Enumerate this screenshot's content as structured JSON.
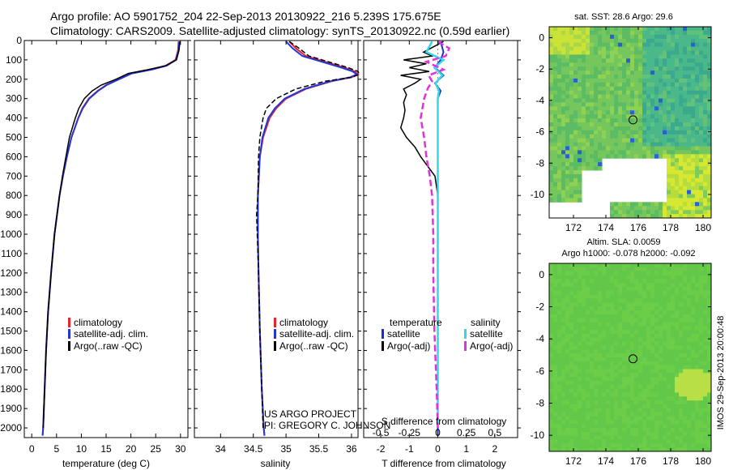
{
  "header": {
    "line1": "Argo profile: AO 5901752_204 22-Sep-2013 20130922_216 5.239S 175.675E",
    "line2": "Climatology: CARS2009. Satellite-adjusted climatology: synTS_20130922.nc (0.59d earlier)"
  },
  "colors": {
    "climatology": "#e8262a",
    "satellite": "#2236d8",
    "argo": "#000000",
    "sat_diff_T": "#1a2ed0",
    "sat_diff_S": "#36d6e6",
    "argo_diff_S": "#e030e0"
  },
  "depth_axis": {
    "ticks": [
      "0",
      "100",
      "200",
      "300",
      "400",
      "500",
      "600",
      "700",
      "800",
      "900",
      "1000",
      "1100",
      "1200",
      "1300",
      "1400",
      "1500",
      "1600",
      "1700",
      "1800",
      "1900",
      "2000"
    ]
  },
  "chart_data": [
    {
      "type": "line",
      "id": "temperature",
      "xlabel": "temperature (deg C)",
      "xlim": [
        -1.5,
        31.5
      ],
      "ylim": [
        0,
        2050
      ],
      "xticks": [
        "0",
        "5",
        "10",
        "15",
        "20",
        "25",
        "30"
      ],
      "legend": [
        "climatology",
        "satellite-adj. clim.",
        "Argo(..raw -QC)"
      ],
      "series": [
        {
          "name": "climatology",
          "depth": [
            5,
            50,
            100,
            130,
            150,
            170,
            200,
            230,
            260,
            300,
            350,
            400,
            500,
            600,
            700,
            800,
            900,
            1000,
            1200,
            1400,
            1600,
            1800,
            2000,
            2040
          ],
          "values": [
            29.6,
            29.5,
            29.0,
            27.0,
            24.0,
            20.0,
            17.5,
            15.0,
            13.3,
            11.5,
            10.2,
            9.4,
            8.0,
            7.1,
            6.3,
            5.6,
            5.1,
            4.6,
            3.9,
            3.3,
            2.9,
            2.6,
            2.3,
            2.2
          ]
        },
        {
          "name": "satellite-adj. clim.",
          "depth": [
            5,
            50,
            100,
            130,
            150,
            170,
            200,
            230,
            260,
            300,
            350,
            400,
            500,
            600,
            700,
            800,
            900,
            1000,
            1200,
            1400,
            1600,
            1800,
            2000,
            2040
          ],
          "values": [
            29.8,
            29.6,
            29.1,
            27.2,
            24.2,
            20.2,
            17.6,
            15.1,
            13.4,
            11.6,
            10.3,
            9.4,
            8.0,
            7.1,
            6.3,
            5.6,
            5.1,
            4.6,
            3.9,
            3.3,
            2.9,
            2.6,
            2.3,
            2.2
          ]
        },
        {
          "name": "Argo(..raw -QC)",
          "depth": [
            5,
            50,
            100,
            130,
            150,
            170,
            200,
            230,
            260,
            300,
            350,
            400,
            500,
            600,
            700,
            800,
            900,
            1000,
            1200,
            1400,
            1600,
            1800,
            2000
          ],
          "values": [
            29.9,
            29.7,
            29.2,
            27.0,
            23.5,
            19.5,
            17.0,
            14.0,
            12.2,
            10.6,
            9.5,
            8.8,
            7.6,
            6.9,
            6.2,
            5.6,
            5.1,
            4.6,
            3.9,
            3.3,
            2.9,
            2.6,
            2.3
          ]
        }
      ]
    },
    {
      "type": "line",
      "id": "salinity",
      "xlabel": "salinity",
      "xlim": [
        33.6,
        36.1
      ],
      "ylim": [
        0,
        2050
      ],
      "xticks": [
        "34",
        "34.5",
        "35",
        "35.5",
        "36"
      ],
      "legend": [
        "climatology",
        "satellite-adj. clim.",
        "Argo(..raw -QC)"
      ],
      "annotation": [
        "US ARGO PROJECT",
        "PI: GREGORY C. JOHNSON"
      ],
      "series": [
        {
          "name": "climatology",
          "depth": [
            5,
            40,
            80,
            110,
            140,
            160,
            175,
            190,
            210,
            250,
            300,
            350,
            400,
            500,
            600,
            800,
            1000,
            1200,
            1500,
            1800,
            2000,
            2040
          ],
          "values": [
            35.05,
            35.15,
            35.3,
            35.6,
            35.9,
            36.05,
            36.1,
            36.0,
            35.7,
            35.3,
            35.0,
            34.85,
            34.75,
            34.65,
            34.6,
            34.57,
            34.57,
            34.58,
            34.6,
            34.63,
            34.66,
            34.67
          ]
        },
        {
          "name": "satellite-adj. clim.",
          "depth": [
            5,
            40,
            80,
            110,
            140,
            160,
            175,
            190,
            210,
            250,
            300,
            350,
            400,
            500,
            600,
            800,
            1000,
            1200,
            1500,
            1800,
            2000,
            2040
          ],
          "values": [
            35.0,
            35.1,
            35.25,
            35.55,
            35.85,
            36.02,
            36.08,
            35.98,
            35.68,
            35.28,
            34.98,
            34.83,
            34.73,
            34.64,
            34.6,
            34.57,
            34.57,
            34.58,
            34.6,
            34.63,
            34.66,
            34.67
          ]
        },
        {
          "name": "Argo(..raw -QC)",
          "depth": [
            5,
            40,
            80,
            110,
            140,
            160,
            175,
            190,
            210,
            250,
            300,
            350,
            400,
            500,
            600,
            800,
            900,
            1000,
            1200,
            1500,
            1800,
            2000
          ],
          "values": [
            35.05,
            35.2,
            35.35,
            35.65,
            35.95,
            36.1,
            36.12,
            36.0,
            35.6,
            35.15,
            34.85,
            34.7,
            34.65,
            34.6,
            34.58,
            34.57,
            34.55,
            34.56,
            34.58,
            34.6,
            34.63,
            34.65
          ]
        }
      ]
    },
    {
      "type": "line",
      "id": "difference",
      "xlabel_top": "S difference from climatology",
      "xlabel": "T difference from climatology",
      "xlim": [
        -2.6,
        2.8
      ],
      "ylim": [
        0,
        2050
      ],
      "xticks_T": [
        "-2",
        "-1",
        "0",
        "1",
        "2"
      ],
      "xticks_S": [
        "-0.5",
        "-0.25",
        "0",
        "0.25",
        "0.5"
      ],
      "legend_T_title": "temperature",
      "legend_S_title": "salinity",
      "legend": [
        "satellite",
        "Argo(-adj)",
        "satellite",
        "Argo(-adj)"
      ],
      "series": [
        {
          "name": "T satellite",
          "depth": [
            5,
            60,
            100,
            140,
            180,
            220,
            260,
            300,
            400,
            600,
            800,
            1000,
            1500,
            2000,
            2040
          ],
          "values": [
            0.1,
            0.2,
            0.1,
            -0.1,
            0.2,
            -0.1,
            0.1,
            0.0,
            0.0,
            0.0,
            0.0,
            0.0,
            0.0,
            0.0,
            0.0
          ]
        },
        {
          "name": "T Argo(-adj)",
          "depth": [
            5,
            60,
            80,
            100,
            120,
            140,
            160,
            180,
            200,
            220,
            250,
            280,
            320,
            360,
            400,
            450,
            500,
            550,
            600,
            650,
            700,
            800,
            900,
            1000,
            1200,
            1500,
            2000
          ],
          "values": [
            0.2,
            -0.5,
            -0.2,
            -1.2,
            -0.4,
            -1.0,
            -0.3,
            -1.3,
            -0.6,
            -0.8,
            -1.2,
            -1.1,
            -1.2,
            -1.15,
            -1.2,
            -1.3,
            -1.1,
            -0.8,
            -0.6,
            -0.35,
            -0.1,
            0.0,
            0.0,
            0.0,
            0.0,
            0.0,
            0.0
          ]
        },
        {
          "name": "S satellite",
          "depth": [
            5,
            60,
            100,
            140,
            180,
            220,
            260,
            300,
            400,
            600,
            800,
            1000,
            1500,
            2000
          ],
          "values": [
            -0.05,
            -0.1,
            0.05,
            -0.03,
            0.04,
            -0.02,
            0.01,
            0.0,
            0.0,
            0.0,
            0.0,
            0.0,
            0.0,
            0.0
          ]
        },
        {
          "name": "S Argo(-adj)",
          "depth": [
            5,
            40,
            80,
            110,
            150,
            180,
            210,
            250,
            300,
            400,
            500,
            600,
            700,
            800,
            1000,
            1200,
            1500,
            1800,
            2000
          ],
          "values": [
            0.0,
            0.1,
            0.07,
            -0.1,
            0.05,
            -0.08,
            -0.05,
            -0.09,
            -0.12,
            -0.15,
            -0.12,
            -0.1,
            -0.07,
            -0.05,
            -0.04,
            -0.04,
            -0.03,
            -0.01,
            0.0
          ]
        }
      ]
    },
    {
      "type": "heatmap",
      "id": "sst_map",
      "title": "sat. SST: 28.6 Argo: 29.6",
      "xlim": [
        170.5,
        180.5
      ],
      "ylim": [
        -11.5,
        0.7
      ],
      "xticks": [
        "172",
        "174",
        "176",
        "178",
        "180"
      ],
      "yticks": [
        "0",
        "-2",
        "-4",
        "-6",
        "-8",
        "-10"
      ],
      "float_position": [
        175.675,
        -5.239
      ]
    },
    {
      "type": "heatmap",
      "id": "sla_map",
      "title": "Altim. SLA: 0.0059",
      "subtitle": "Argo h1000: -0.078 h2000: -0.092",
      "xlim": [
        170.5,
        180.5
      ],
      "ylim": [
        -11.0,
        0.7
      ],
      "xticks": [
        "172",
        "174",
        "176",
        "178",
        "180"
      ],
      "yticks": [
        "0",
        "-2",
        "-4",
        "-6",
        "-8",
        "-10"
      ],
      "float_position": [
        175.675,
        -5.239
      ],
      "side_label": "IMOS 29-Sep-2013 20:00:48"
    }
  ]
}
